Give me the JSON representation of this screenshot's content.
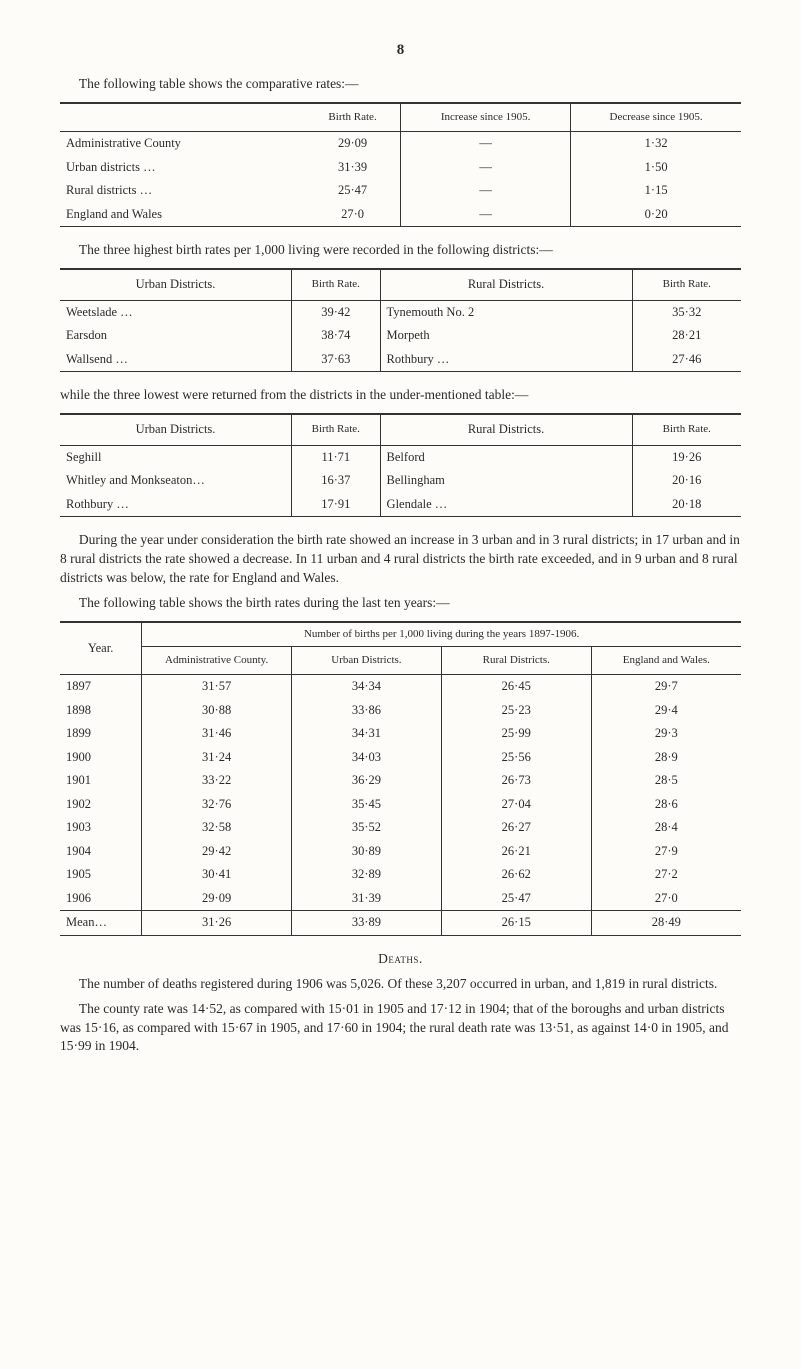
{
  "page_number": "8",
  "intro1": "The following table shows the comparative rates:—",
  "table1": {
    "headers": [
      "",
      "Birth Rate.",
      "Increase since 1905.",
      "Decrease since 1905."
    ],
    "rows": [
      [
        "Administrative County",
        "29·09",
        "—",
        "1·32"
      ],
      [
        "Urban districts …",
        "31·39",
        "—",
        "1·50"
      ],
      [
        "Rural districts …",
        "25·47",
        "—",
        "1·15"
      ],
      [
        "England and Wales",
        "27·0",
        "—",
        "0·20"
      ]
    ]
  },
  "para2": "The three highest birth rates per 1,000 living were recorded in the following districts:—",
  "table2": {
    "headers": [
      "Urban Districts.",
      "Birth Rate.",
      "Rural Districts.",
      "Birth Rate."
    ],
    "rows": [
      [
        "Weetslade …",
        "39·42",
        "Tynemouth No. 2",
        "35·32"
      ],
      [
        "Earsdon",
        "38·74",
        "Morpeth",
        "28·21"
      ],
      [
        "Wallsend …",
        "37·63",
        "Rothbury …",
        "27·46"
      ]
    ]
  },
  "para3": "while the three lowest were returned from the districts in the under-mentioned table:—",
  "table3": {
    "headers": [
      "Urban Districts.",
      "Birth Rate.",
      "Rural Districts.",
      "Birth Rate."
    ],
    "rows": [
      [
        "Seghill",
        "11·71",
        "Belford",
        "19·26"
      ],
      [
        "Whitley and Monkseaton…",
        "16·37",
        "Bellingham",
        "20·16"
      ],
      [
        "Rothbury …",
        "17·91",
        "Glendale …",
        "20·18"
      ]
    ]
  },
  "para4": "During the year under consideration the birth rate showed an increase in 3 urban and in 3 rural districts; in 17 urban and in 8 rural districts the rate showed a decrease.  In 11 urban and 4 rural districts the birth rate exceeded, and in 9 urban and 8 rural districts was below, the rate for England and Wales.",
  "para5": "The following table shows the birth rates during the last ten years:—",
  "table4": {
    "spanning": "Number of births per 1,000 living during the years 1897-1906.",
    "year_label": "Year.",
    "headers": [
      "Administrative County.",
      "Urban Districts.",
      "Rural Districts.",
      "England and Wales."
    ],
    "rows": [
      [
        "1897",
        "31·57",
        "34·34",
        "26·45",
        "29·7"
      ],
      [
        "1898",
        "30·88",
        "33·86",
        "25·23",
        "29·4"
      ],
      [
        "1899",
        "31·46",
        "34·31",
        "25·99",
        "29·3"
      ],
      [
        "1900",
        "31·24",
        "34·03",
        "25·56",
        "28·9"
      ],
      [
        "1901",
        "33·22",
        "36·29",
        "26·73",
        "28·5"
      ],
      [
        "1902",
        "32·76",
        "35·45",
        "27·04",
        "28·6"
      ],
      [
        "1903",
        "32·58",
        "35·52",
        "26·27",
        "28·4"
      ],
      [
        "1904",
        "29·42",
        "30·89",
        "26·21",
        "27·9"
      ],
      [
        "1905",
        "30·41",
        "32·89",
        "26·62",
        "27·2"
      ],
      [
        "1906",
        "29·09",
        "31·39",
        "25·47",
        "27·0"
      ]
    ],
    "mean": [
      "Mean…",
      "31·26",
      "33·89",
      "26·15",
      "28·49"
    ]
  },
  "deaths_title": "Deaths.",
  "para6": "The number of deaths registered during 1906 was 5,026.  Of these 3,207 occurred in urban, and 1,819 in rural districts.",
  "para7": "The county rate was 14·52, as compared with 15·01 in 1905 and 17·12 in 1904; that of the boroughs and urban districts was 15·16, as compared with 15·67 in 1905, and 17·60 in 1904; the rural death rate was 13·51, as against 14·0 in 1905, and 15·99 in 1904."
}
